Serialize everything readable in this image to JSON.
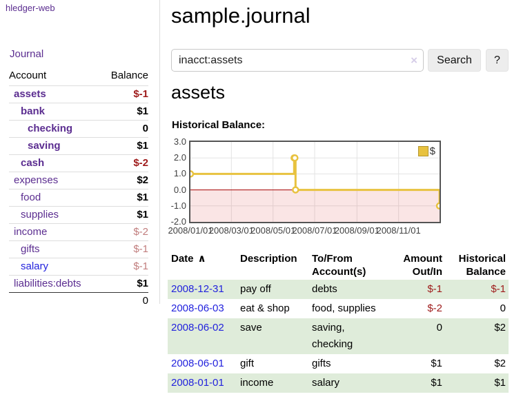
{
  "app": {
    "brand": "hledger-web"
  },
  "sidebar": {
    "journal_link": "Journal",
    "header": {
      "account": "Account",
      "balance": "Balance"
    },
    "accounts": [
      {
        "name": "assets",
        "level": 1,
        "balance": "$-1",
        "in_scope": true,
        "balance_class": "neg-strong",
        "link_color": "purple"
      },
      {
        "name": "bank",
        "level": 2,
        "balance": "$1",
        "in_scope": true,
        "balance_class": "pos",
        "link_color": "purple"
      },
      {
        "name": "checking",
        "level": 3,
        "balance": "0",
        "in_scope": true,
        "balance_class": "pos",
        "link_color": "purple"
      },
      {
        "name": "saving",
        "level": 3,
        "balance": "$1",
        "in_scope": true,
        "balance_class": "pos",
        "link_color": "purple"
      },
      {
        "name": "cash",
        "level": 2,
        "balance": "$-2",
        "in_scope": true,
        "balance_class": "neg-strong",
        "link_color": "purple"
      },
      {
        "name": "expenses",
        "level": 1,
        "balance": "$2",
        "in_scope": false,
        "balance_class": "pos",
        "link_color": "purple"
      },
      {
        "name": "food",
        "level": 2,
        "balance": "$1",
        "in_scope": false,
        "balance_class": "pos",
        "link_color": "purple"
      },
      {
        "name": "supplies",
        "level": 2,
        "balance": "$1",
        "in_scope": false,
        "balance_class": "pos",
        "link_color": "purple"
      },
      {
        "name": "income",
        "level": 1,
        "balance": "$-2",
        "in_scope": false,
        "balance_class": "neg-soft",
        "link_color": "purple"
      },
      {
        "name": "gifts",
        "level": 2,
        "balance": "$-1",
        "in_scope": false,
        "balance_class": "neg-soft",
        "link_color": "purple"
      },
      {
        "name": "salary",
        "level": 2,
        "balance": "$-1",
        "in_scope": false,
        "balance_class": "neg-soft",
        "link_color": "blue"
      },
      {
        "name": "liabilities:debts",
        "level": 1,
        "balance": "$1",
        "in_scope": false,
        "balance_class": "pos",
        "link_color": "purple"
      }
    ],
    "total": "0"
  },
  "main": {
    "title": "sample.journal",
    "search": {
      "value": "inacct:assets",
      "clear_icon": "×",
      "search_button": "Search",
      "help_button": "?"
    },
    "account_heading": "assets",
    "chart_title": "Historical Balance:"
  },
  "chart_data": {
    "type": "line",
    "step": true,
    "title": "Historical Balance",
    "legend": {
      "label": "$",
      "position": "top-right"
    },
    "series": [
      {
        "name": "$",
        "color": "#e8c23f",
        "points": [
          [
            "2008-01-01",
            1
          ],
          [
            "2008-06-01",
            2
          ],
          [
            "2008-06-02",
            2
          ],
          [
            "2008-06-03",
            0
          ],
          [
            "2008-12-31",
            -1
          ]
        ]
      }
    ],
    "x_range": [
      "2008-01-01",
      "2008-12-31"
    ],
    "x_ticks": [
      {
        "date": "2008-01-01",
        "label": "2008/01/01"
      },
      {
        "date": "2008-03-01",
        "label": "2008/03/01"
      },
      {
        "date": "2008-05-01",
        "label": "2008/05/01"
      },
      {
        "date": "2008-07-01",
        "label": "2008/07/01"
      },
      {
        "date": "2008-09-01",
        "label": "2008/09/01"
      },
      {
        "date": "2008-11-01",
        "label": "2008/11/01"
      }
    ],
    "y_ticks": [
      {
        "value": 3,
        "label": "3.0"
      },
      {
        "value": 2,
        "label": "2.0"
      },
      {
        "value": 1,
        "label": "1.0"
      },
      {
        "value": 0,
        "label": "0.0"
      },
      {
        "value": -1,
        "label": "-1.0"
      },
      {
        "value": -2,
        "label": "-2.0"
      }
    ],
    "ylim": [
      -2,
      3
    ],
    "grid": true,
    "colors": {
      "line": "#e8c23f",
      "marker_fill": "#ffffff",
      "negative_fill": "rgba(226,94,94,0.16)",
      "zero_line": "#a40000",
      "grid": "#e3e3e3",
      "border": "#545454"
    }
  },
  "register": {
    "headers": [
      {
        "lines": [
          "Date"
        ],
        "align": "left",
        "sort_indicator": "∧"
      },
      {
        "lines": [
          "Description"
        ],
        "align": "left"
      },
      {
        "lines": [
          "To/From",
          "Account(s)"
        ],
        "align": "left"
      },
      {
        "lines": [
          "Amount",
          "Out/In"
        ],
        "align": "right"
      },
      {
        "lines": [
          "Historical",
          "Balance"
        ],
        "align": "right"
      }
    ],
    "rows": [
      {
        "date": "2008-12-31",
        "description": "pay off",
        "accounts": "debts",
        "amount": "$-1",
        "amount_negative": true,
        "balance": "$-1",
        "balance_negative": true,
        "shaded": true
      },
      {
        "date": "2008-06-03",
        "description": "eat & shop",
        "accounts": "food, supplies",
        "amount": "$-2",
        "amount_negative": true,
        "balance": "0",
        "balance_negative": false,
        "shaded": false
      },
      {
        "date": "2008-06-02",
        "description": "save",
        "accounts": "saving, checking",
        "amount": "0",
        "amount_negative": false,
        "balance": "$2",
        "balance_negative": false,
        "shaded": true
      },
      {
        "date": "2008-06-01",
        "description": "gift",
        "accounts": "gifts",
        "amount": "$1",
        "amount_negative": false,
        "balance": "$2",
        "balance_negative": false,
        "shaded": false
      },
      {
        "date": "2008-01-01",
        "description": "income",
        "accounts": "salary",
        "amount": "$1",
        "amount_negative": false,
        "balance": "$1",
        "balance_negative": false,
        "shaded": true
      }
    ]
  }
}
